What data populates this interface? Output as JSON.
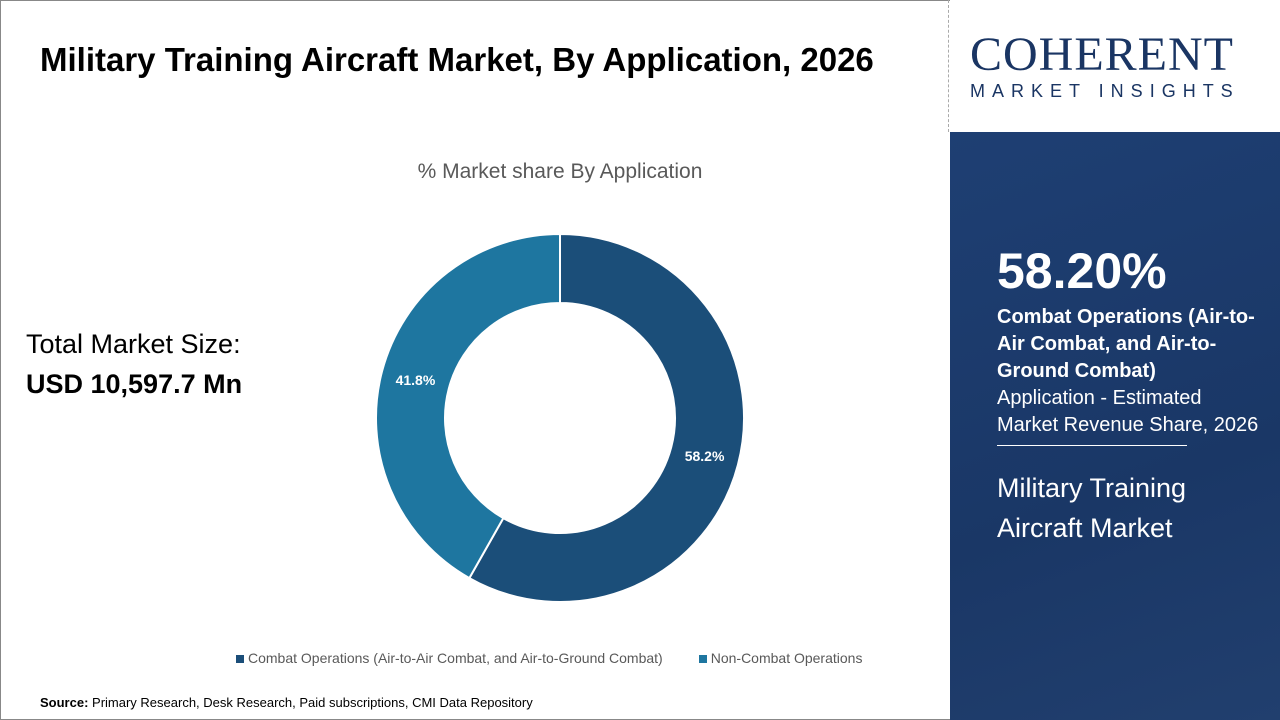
{
  "title": "Military Training Aircraft Market, By Application, 2026",
  "total_label": "Total Market Size:",
  "total_value": "USD 10,597.7 Mn",
  "source_label": "Source:",
  "source_text": " Primary Research, Desk Research, Paid subscriptions, CMI Data Repository",
  "logo": {
    "name": "COHERENT",
    "tagline": "MARKET INSIGHTS"
  },
  "panel": {
    "percent": "58.20%",
    "segment": "Combat Operations (Air-to-Air Combat, and Air-to-Ground Combat)",
    "description": "Application - Estimated Market Revenue Share, 2026",
    "market": "Military Training Aircraft Market"
  },
  "chart_data": {
    "type": "pie",
    "donut": true,
    "title": "% Market share By Application",
    "categories": [
      "Combat Operations (Air-to-Air Combat, and Air-to-Ground Combat)",
      "Non-Combat Operations"
    ],
    "values": [
      58.2,
      41.8
    ],
    "labels": [
      "58.2%",
      "41.8%"
    ],
    "colors": [
      "#1b4e79",
      "#1e76a0"
    ],
    "legend": "bottom"
  }
}
